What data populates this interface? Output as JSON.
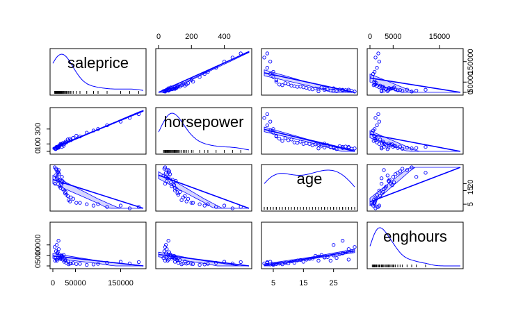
{
  "chart_data": {
    "type": "scatter",
    "variant": "scatterplot-matrix",
    "colors": {
      "points": "#0000FF",
      "band_fill": "#ccccff",
      "frame": "#000000",
      "text": "#000000"
    },
    "variables": [
      "saleprice",
      "horsepower",
      "age",
      "enghours"
    ],
    "ranges": {
      "saleprice": [
        0,
        200000
      ],
      "horsepower": [
        0,
        550
      ],
      "age": [
        2,
        32
      ],
      "enghours": [
        0,
        19500
      ]
    },
    "axes": {
      "top": [
        {
          "variable": "horsepower",
          "ticks": [
            0,
            200,
            400
          ],
          "labels": [
            "0",
            "200",
            "400"
          ]
        },
        {
          "variable": "enghours",
          "ticks": [
            0,
            5000,
            15000
          ],
          "labels": [
            "0",
            "5000",
            "15000"
          ]
        }
      ],
      "bottom": [
        {
          "variable": "saleprice",
          "ticks": [
            0,
            50000,
            150000
          ],
          "labels": [
            "0",
            "50000",
            "150000"
          ]
        },
        {
          "variable": "age",
          "ticks": [
            5,
            15,
            25
          ],
          "labels": [
            "5",
            "15",
            "25"
          ]
        }
      ],
      "left": [
        {
          "variable": "horsepower",
          "ticks": [
            0,
            100,
            300
          ],
          "labels": [
            "0",
            "100",
            "300"
          ]
        },
        {
          "variable": "enghours",
          "ticks": [
            0,
            5000,
            10000
          ],
          "labels": [
            "0",
            "5000",
            "10000"
          ]
        }
      ],
      "right": [
        {
          "variable": "saleprice",
          "ticks": [
            0,
            50000,
            150000
          ],
          "labels": [
            "0",
            "50000",
            "150000"
          ]
        },
        {
          "variable": "age",
          "ticks": [
            5,
            15,
            20
          ],
          "labels": [
            "5",
            "15",
            "20"
          ]
        }
      ]
    },
    "observations": [
      {
        "saleprice": 5000,
        "horsepower": 40,
        "age": 20,
        "enghours": 2500
      },
      {
        "saleprice": 8000,
        "horsepower": 60,
        "age": 30,
        "enghours": 3000
      },
      {
        "saleprice": 12000,
        "horsepower": 50,
        "age": 22,
        "enghours": 4000
      },
      {
        "saleprice": 15000,
        "horsepower": 80,
        "age": 18,
        "enghours": 3500
      },
      {
        "saleprice": 20000,
        "horsepower": 60,
        "age": 25,
        "enghours": 5000
      },
      {
        "saleprice": 25000,
        "horsepower": 100,
        "age": 15,
        "enghours": 2000
      },
      {
        "saleprice": 30000,
        "horsepower": 120,
        "age": 12,
        "enghours": 1500
      },
      {
        "saleprice": 10000,
        "horsepower": 45,
        "age": 28,
        "enghours": 6000
      },
      {
        "saleprice": 7000,
        "horsepower": 35,
        "age": 31,
        "enghours": 7000
      },
      {
        "saleprice": 40000,
        "horsepower": 150,
        "age": 10,
        "enghours": 1200
      },
      {
        "saleprice": 18000,
        "horsepower": 90,
        "age": 20,
        "enghours": 4500
      },
      {
        "saleprice": 22000,
        "horsepower": 110,
        "age": 16,
        "enghours": 3000
      },
      {
        "saleprice": 9000,
        "horsepower": 55,
        "age": 24,
        "enghours": 2500
      },
      {
        "saleprice": 35000,
        "horsepower": 140,
        "age": 8,
        "enghours": 800
      },
      {
        "saleprice": 60000,
        "horsepower": 200,
        "age": 6,
        "enghours": 1000
      },
      {
        "saleprice": 75000,
        "horsepower": 250,
        "age": 5,
        "enghours": 500
      },
      {
        "saleprice": 90000,
        "horsepower": 280,
        "age": 4,
        "enghours": 700
      },
      {
        "saleprice": 120000,
        "horsepower": 350,
        "age": 3,
        "enghours": 1500
      },
      {
        "saleprice": 150000,
        "horsepower": 400,
        "age": 4,
        "enghours": 2000
      },
      {
        "saleprice": 190000,
        "horsepower": 500,
        "age": 3,
        "enghours": 1800
      },
      {
        "saleprice": 14000,
        "horsepower": 70,
        "age": 27,
        "enghours": 5500
      },
      {
        "saleprice": 16000,
        "horsepower": 85,
        "age": 23,
        "enghours": 4200
      },
      {
        "saleprice": 11000,
        "horsepower": 65,
        "age": 29,
        "enghours": 6500
      },
      {
        "saleprice": 28000,
        "horsepower": 130,
        "age": 14,
        "enghours": 2800
      },
      {
        "saleprice": 45000,
        "horsepower": 180,
        "age": 9,
        "enghours": 1400
      },
      {
        "saleprice": 6000,
        "horsepower": 30,
        "age": 26,
        "enghours": 3800
      },
      {
        "saleprice": 19000,
        "horsepower": 95,
        "age": 19,
        "enghours": 4800
      },
      {
        "saleprice": 24000,
        "horsepower": 75,
        "age": 21,
        "enghours": 5200
      },
      {
        "saleprice": 33000,
        "horsepower": 160,
        "age": 11,
        "enghours": 2200
      },
      {
        "saleprice": 13000,
        "horsepower": 50,
        "age": 30,
        "enghours": 8000
      },
      {
        "saleprice": 100000,
        "horsepower": 300,
        "age": 5,
        "enghours": 1000
      },
      {
        "saleprice": 170000,
        "horsepower": 450,
        "age": 2,
        "enghours": 1200
      },
      {
        "saleprice": 4000,
        "horsepower": 40,
        "age": 32,
        "enghours": 9000
      },
      {
        "saleprice": 17000,
        "horsepower": 100,
        "age": 17,
        "enghours": 3300
      },
      {
        "saleprice": 27000,
        "horsepower": 115,
        "age": 13,
        "enghours": 2600
      },
      {
        "saleprice": 38000,
        "horsepower": 170,
        "age": 7,
        "enghours": 1100
      },
      {
        "saleprice": 52000,
        "horsepower": 210,
        "age": 6,
        "enghours": 900
      },
      {
        "saleprice": 21000,
        "horsepower": 105,
        "age": 22,
        "enghours": 4100
      },
      {
        "saleprice": 8500,
        "horsepower": 45,
        "age": 25,
        "enghours": 10000
      },
      {
        "saleprice": 12500,
        "horsepower": 60,
        "age": 28,
        "enghours": 12000
      }
    ]
  }
}
